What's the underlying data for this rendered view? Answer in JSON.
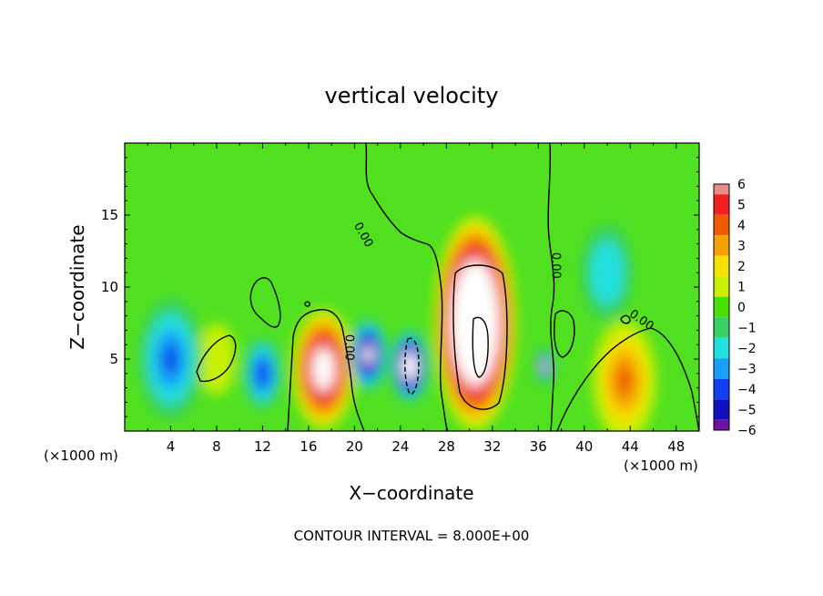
{
  "chart_data": {
    "type": "heatmap",
    "title": "vertical velocity",
    "xlabel": "X−coordinate",
    "ylabel": "Z−coordinate",
    "x_unit_left": "(×1000 m)",
    "x_unit_right": "(×1000 m)",
    "footer": "CONTOUR INTERVAL = 8.000E+00",
    "xlim": [
      0,
      50
    ],
    "ylim": [
      0,
      20
    ],
    "x_ticks": [
      "4",
      "8",
      "12",
      "16",
      "20",
      "24",
      "28",
      "32",
      "36",
      "40",
      "44",
      "48"
    ],
    "x_tick_values": [
      4,
      8,
      12,
      16,
      20,
      24,
      28,
      32,
      36,
      40,
      44,
      48
    ],
    "y_ticks": [
      "5",
      "10",
      "15"
    ],
    "y_tick_values": [
      5,
      10,
      15
    ],
    "contour_label": "0.00",
    "colorbar": {
      "labels": [
        "6",
        "5",
        "4",
        "3",
        "2",
        "1",
        "0",
        "−1",
        "−2",
        "−3",
        "−4",
        "−5",
        "−6"
      ],
      "values": [
        6,
        5,
        4,
        3,
        2,
        1,
        0,
        -1,
        -2,
        -3,
        -4,
        -5,
        -6
      ],
      "colors": [
        "#f08a8a",
        "#f02020",
        "#f05a00",
        "#f5a000",
        "#f5e000",
        "#c8f000",
        "#48e000",
        "#38d060",
        "#20e0e0",
        "#18a0f8",
        "#1040f0",
        "#1010c0",
        "#7010a0"
      ]
    },
    "features": [
      {
        "x": 30.5,
        "z": 7.5,
        "w": 6.5,
        "peak": 14
      },
      {
        "x": 17.3,
        "z": 4.3,
        "w": 5.0,
        "peak": 9
      },
      {
        "x": 24.8,
        "z": 4.5,
        "w": 3.0,
        "peak": -10
      },
      {
        "x": 21.2,
        "z": 5.3,
        "w": 3.0,
        "peak": -8
      },
      {
        "x": 36.6,
        "z": 4.5,
        "w": 1.4,
        "peak": -9
      },
      {
        "x": 43.5,
        "z": 3.5,
        "w": 5.0,
        "peak": 4
      },
      {
        "x": 8.0,
        "z": 5.0,
        "w": 3.0,
        "peak": 0.5
      },
      {
        "x": 4.0,
        "z": 5.0,
        "w": 5.0,
        "peak": -4
      },
      {
        "x": 12.0,
        "z": 4.0,
        "w": 3.0,
        "peak": -4.5
      },
      {
        "x": 42.0,
        "z": 11.0,
        "w": 4.0,
        "peak": -2.5
      }
    ]
  }
}
